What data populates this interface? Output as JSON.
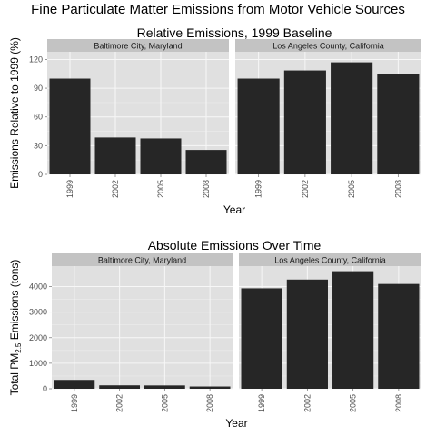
{
  "figure_title": "Fine Particulate Matter Emissions from Motor Vehicle Sources",
  "chart_data": [
    {
      "type": "bar",
      "title": "Relative Emissions, 1999 Baseline",
      "xlabel": "Year",
      "ylabel": "Emissions Relative to 1999 (%)",
      "categories": [
        "1999",
        "2002",
        "2005",
        "2008"
      ],
      "ylim": [
        0,
        128
      ],
      "yticks": [
        "0",
        "30",
        "60",
        "90",
        "120"
      ],
      "ytick_values": [
        0,
        30,
        60,
        90,
        120
      ],
      "bar_color": "#262626",
      "panel_bg": "#e0e0e0",
      "strip_bg": "#c3c3c3",
      "facets": [
        {
          "strip": "Baltimore City, Maryland",
          "values": [
            100,
            38.5,
            37.5,
            25.5
          ]
        },
        {
          "strip": "Los Angeles County, California",
          "values": [
            100,
            108.5,
            117,
            104.5
          ]
        }
      ]
    },
    {
      "type": "bar",
      "title": "Absolute Emissions Over Time",
      "xlabel": "Year",
      "ylabel": {
        "prefix": "Total PM",
        "subscript": "2.5",
        "suffix": " Emissions (tons)"
      },
      "categories": [
        "1999",
        "2002",
        "2005",
        "2008"
      ],
      "ylim": [
        0,
        4800
      ],
      "yticks": [
        "0",
        "1000",
        "2000",
        "3000",
        "4000"
      ],
      "ytick_values": [
        0,
        1000,
        2000,
        3000,
        4000
      ],
      "bar_color": "#262626",
      "panel_bg": "#e0e0e0",
      "strip_bg": "#c3c3c3",
      "facets": [
        {
          "strip": "Baltimore City, Maryland",
          "values": [
            347,
            134,
            130,
            88
          ]
        },
        {
          "strip": "Los Angeles County, California",
          "values": [
            3931,
            4274,
            4601,
            4101
          ]
        }
      ]
    }
  ]
}
